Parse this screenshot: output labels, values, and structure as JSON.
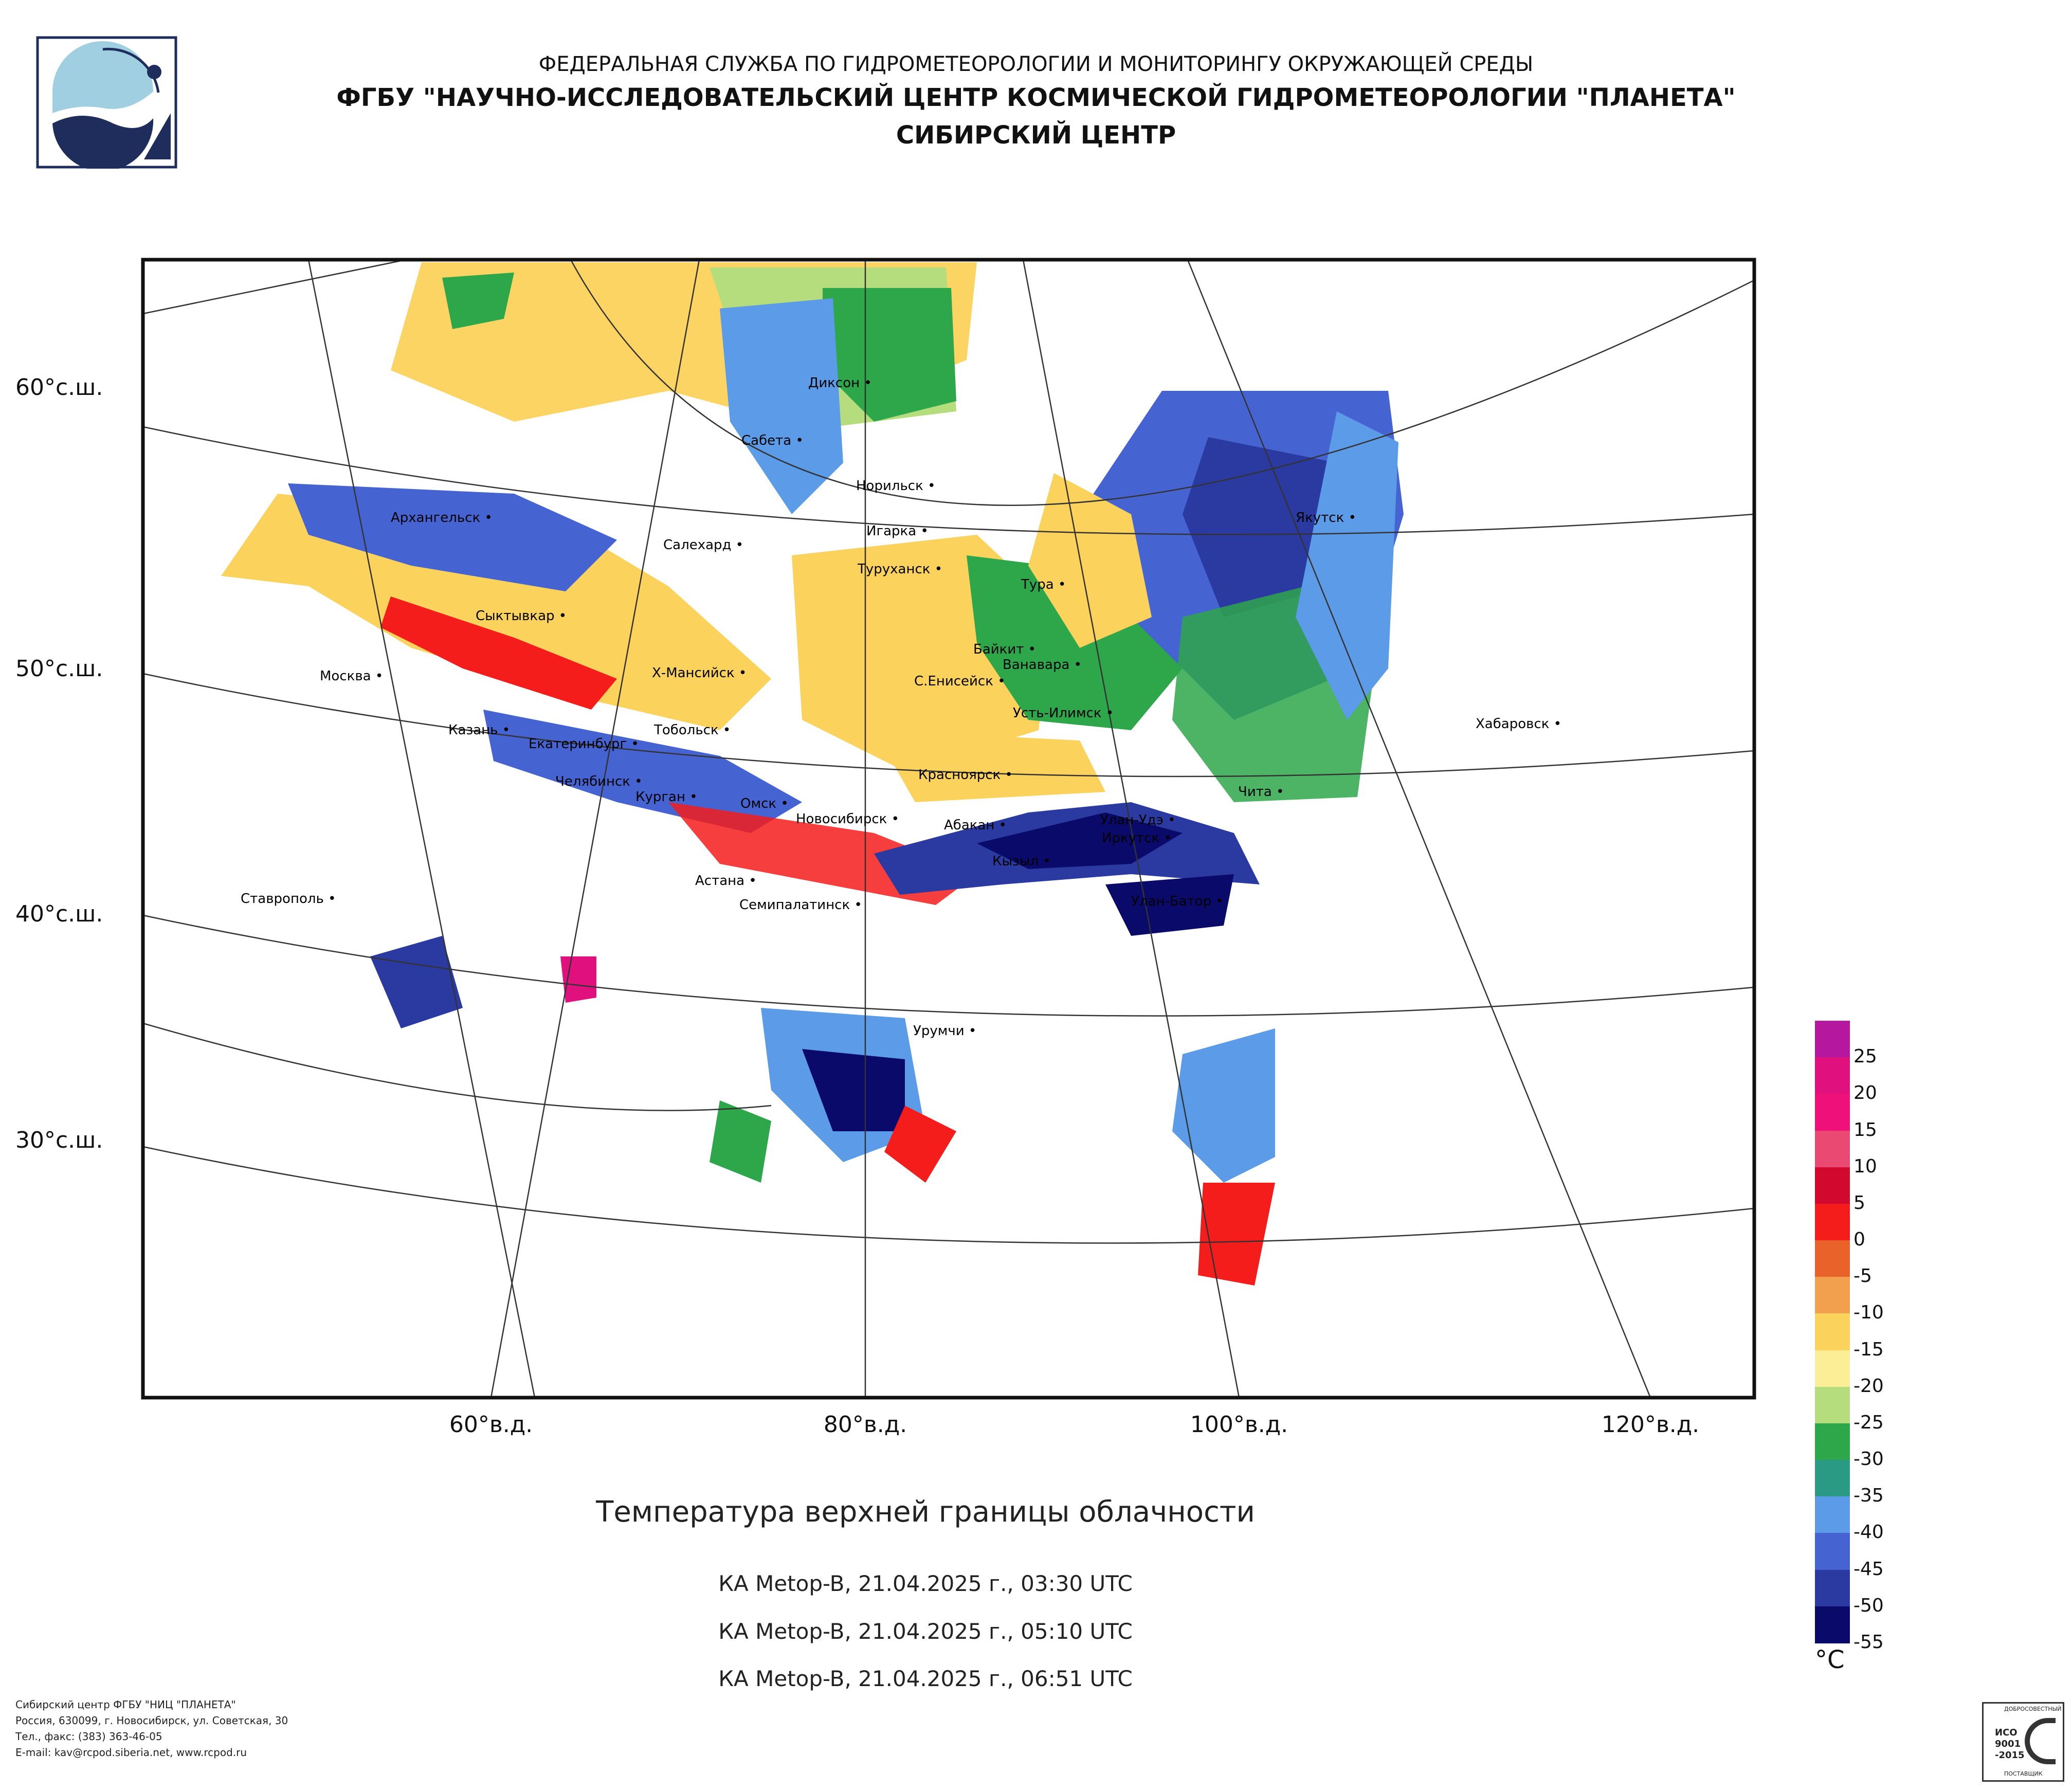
{
  "header": {
    "line1": "ФЕДЕРАЛЬНАЯ СЛУЖБА ПО ГИДРОМЕТЕОРОЛОГИИ И МОНИТОРИНГУ ОКРУЖАЮЩЕЙ СРЕДЫ",
    "line2": "ФГБУ \"НАУЧНО-ИССЛЕДОВАТЕЛЬСКИЙ ЦЕНТР КОСМИЧЕСКОЙ ГИДРОМЕТЕОРОЛОГИИ \"ПЛАНЕТА\"",
    "line3": "СИБИРСКИЙ ЦЕНТР"
  },
  "map": {
    "lat_labels": [
      "60°с.ш.",
      "50°с.ш.",
      "40°с.ш.",
      "30°с.ш."
    ],
    "lon_labels": [
      "60°в.д.",
      "80°в.д.",
      "100°в.д.",
      "120°в.д."
    ],
    "cities": [
      {
        "name": "Диксон"
      },
      {
        "name": "Сабета"
      },
      {
        "name": "Норильск"
      },
      {
        "name": "Архангельск"
      },
      {
        "name": "Салехард"
      },
      {
        "name": "Игарка"
      },
      {
        "name": "Якутск"
      },
      {
        "name": "Туруханск"
      },
      {
        "name": "Тура"
      },
      {
        "name": "Сыктывкар"
      },
      {
        "name": "Байкит"
      },
      {
        "name": "Ванавара"
      },
      {
        "name": "Москва"
      },
      {
        "name": "Х-Мансийск"
      },
      {
        "name": "С.Енисейск"
      },
      {
        "name": "Усть-Илимск"
      },
      {
        "name": "Хабаровск"
      },
      {
        "name": "Казань"
      },
      {
        "name": "Тобольск"
      },
      {
        "name": "Екатеринбург"
      },
      {
        "name": "Красноярск"
      },
      {
        "name": "Челябинск"
      },
      {
        "name": "Курган"
      },
      {
        "name": "Чита"
      },
      {
        "name": "Омск"
      },
      {
        "name": "Новосибирск"
      },
      {
        "name": "Улан-Удэ"
      },
      {
        "name": "Абакан"
      },
      {
        "name": "Иркутск"
      },
      {
        "name": "Кызыл"
      },
      {
        "name": "Астана"
      },
      {
        "name": "Ставрополь"
      },
      {
        "name": "Семипалатинск"
      },
      {
        "name": "Улан-Батор"
      },
      {
        "name": "Урумчи"
      }
    ]
  },
  "colorbar": {
    "title": "Температура верхней границы облачности",
    "unit": "°C",
    "labels": [
      "25",
      "20",
      "15",
      "10",
      "5",
      "0",
      "-5",
      "-10",
      "-15",
      "-20",
      "-25",
      "-30",
      "-35",
      "-40",
      "-45",
      "-50",
      "-55"
    ],
    "colors": [
      "#b5179e",
      "#e0117f",
      "#f0107a",
      "#ea4a72",
      "#d3082e",
      "#f51c1c",
      "#e8622a",
      "#f2a04e",
      "#fbd25c",
      "#fbee96",
      "#b5dd7d",
      "#2ea64a",
      "#2b9a84",
      "#5b9be8",
      "#4564d2",
      "#2a3aa0",
      "#0a0a6b"
    ]
  },
  "passes": [
    "КА Metop-B, 21.04.2025 г., 03:30 UTC",
    "КА Metop-B, 21.04.2025 г., 05:10 UTC",
    "КА Metop-B, 21.04.2025 г., 06:51 UTC"
  ],
  "footer": {
    "line1": "Сибирский центр ФГБУ \"НИЦ \"ПЛАНЕТА\"",
    "line2": "Россия, 630099, г. Новосибирск, ул. Советская, 30",
    "line3": "Тел., факс: (383) 363-46-05",
    "line4": "E-mail: kav@rcpod.siberia.net, www.rcpod.ru"
  },
  "badge": {
    "top": "ДОБРОСОВЕСТНЫЙ",
    "iso": "ИСО",
    "num": "9001",
    "year": "-2015",
    "bottom": "ПОСТАВЩИК"
  }
}
